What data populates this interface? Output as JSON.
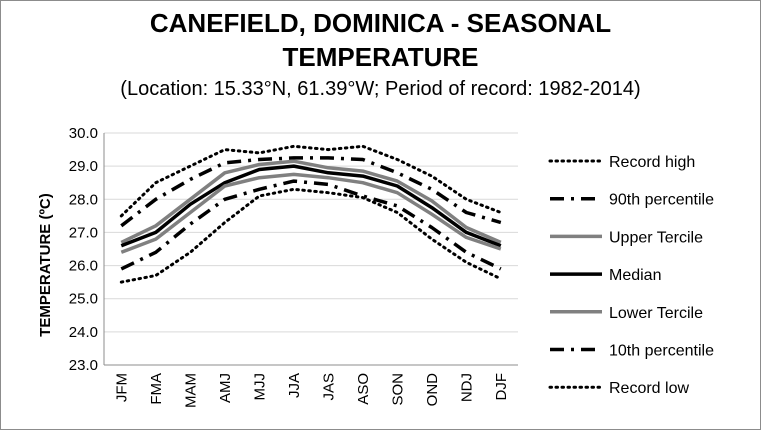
{
  "chart_data": {
    "type": "line",
    "title_line1": "CANEFIELD, DOMINICA - SEASONAL",
    "title_line2": "TEMPERATURE",
    "subtitle": "(Location: 15.33°N, 61.39°W; Period of record: 1982-2014)",
    "ylabel": "TEMPERATURE (ºC)",
    "xlabel": "",
    "categories": [
      "JFM",
      "FMA",
      "MAM",
      "AMJ",
      "MJJ",
      "JJA",
      "JAS",
      "ASO",
      "SON",
      "OND",
      "NDJ",
      "DJF"
    ],
    "ylim": [
      23.0,
      30.0
    ],
    "yticks": [
      "23.0",
      "24.0",
      "25.0",
      "26.0",
      "27.0",
      "28.0",
      "29.0",
      "30.0"
    ],
    "grid": true,
    "legend_position": "right",
    "series": [
      {
        "name": "Record high",
        "style": "dotted",
        "color": "#000000",
        "values": [
          27.5,
          28.5,
          29.0,
          29.5,
          29.4,
          29.6,
          29.5,
          29.6,
          29.2,
          28.7,
          28.0,
          27.6
        ]
      },
      {
        "name": "90th percentile",
        "style": "dashdot",
        "color": "#000000",
        "values": [
          27.2,
          28.0,
          28.6,
          29.1,
          29.2,
          29.25,
          29.25,
          29.2,
          28.8,
          28.3,
          27.6,
          27.3
        ]
      },
      {
        "name": "Upper Tercile",
        "style": "solid",
        "color": "#808080",
        "values": [
          26.7,
          27.2,
          28.0,
          28.8,
          29.05,
          29.15,
          28.95,
          28.85,
          28.55,
          27.95,
          27.15,
          26.7
        ]
      },
      {
        "name": "Median",
        "style": "solid",
        "color": "#000000",
        "values": [
          26.6,
          27.0,
          27.85,
          28.5,
          28.9,
          29.0,
          28.8,
          28.7,
          28.4,
          27.75,
          27.0,
          26.6
        ]
      },
      {
        "name": "Lower Tercile",
        "style": "solid",
        "color": "#808080",
        "values": [
          26.4,
          26.8,
          27.6,
          28.4,
          28.65,
          28.75,
          28.65,
          28.5,
          28.2,
          27.55,
          26.85,
          26.5
        ]
      },
      {
        "name": "10th percentile",
        "style": "dashdot",
        "color": "#000000",
        "values": [
          25.9,
          26.4,
          27.25,
          28.0,
          28.3,
          28.55,
          28.45,
          28.1,
          27.8,
          27.15,
          26.4,
          25.9
        ]
      },
      {
        "name": "Record low",
        "style": "dotted",
        "color": "#000000",
        "values": [
          25.5,
          25.7,
          26.4,
          27.3,
          28.1,
          28.3,
          28.2,
          28.05,
          27.6,
          26.8,
          26.1,
          25.6
        ]
      }
    ]
  }
}
